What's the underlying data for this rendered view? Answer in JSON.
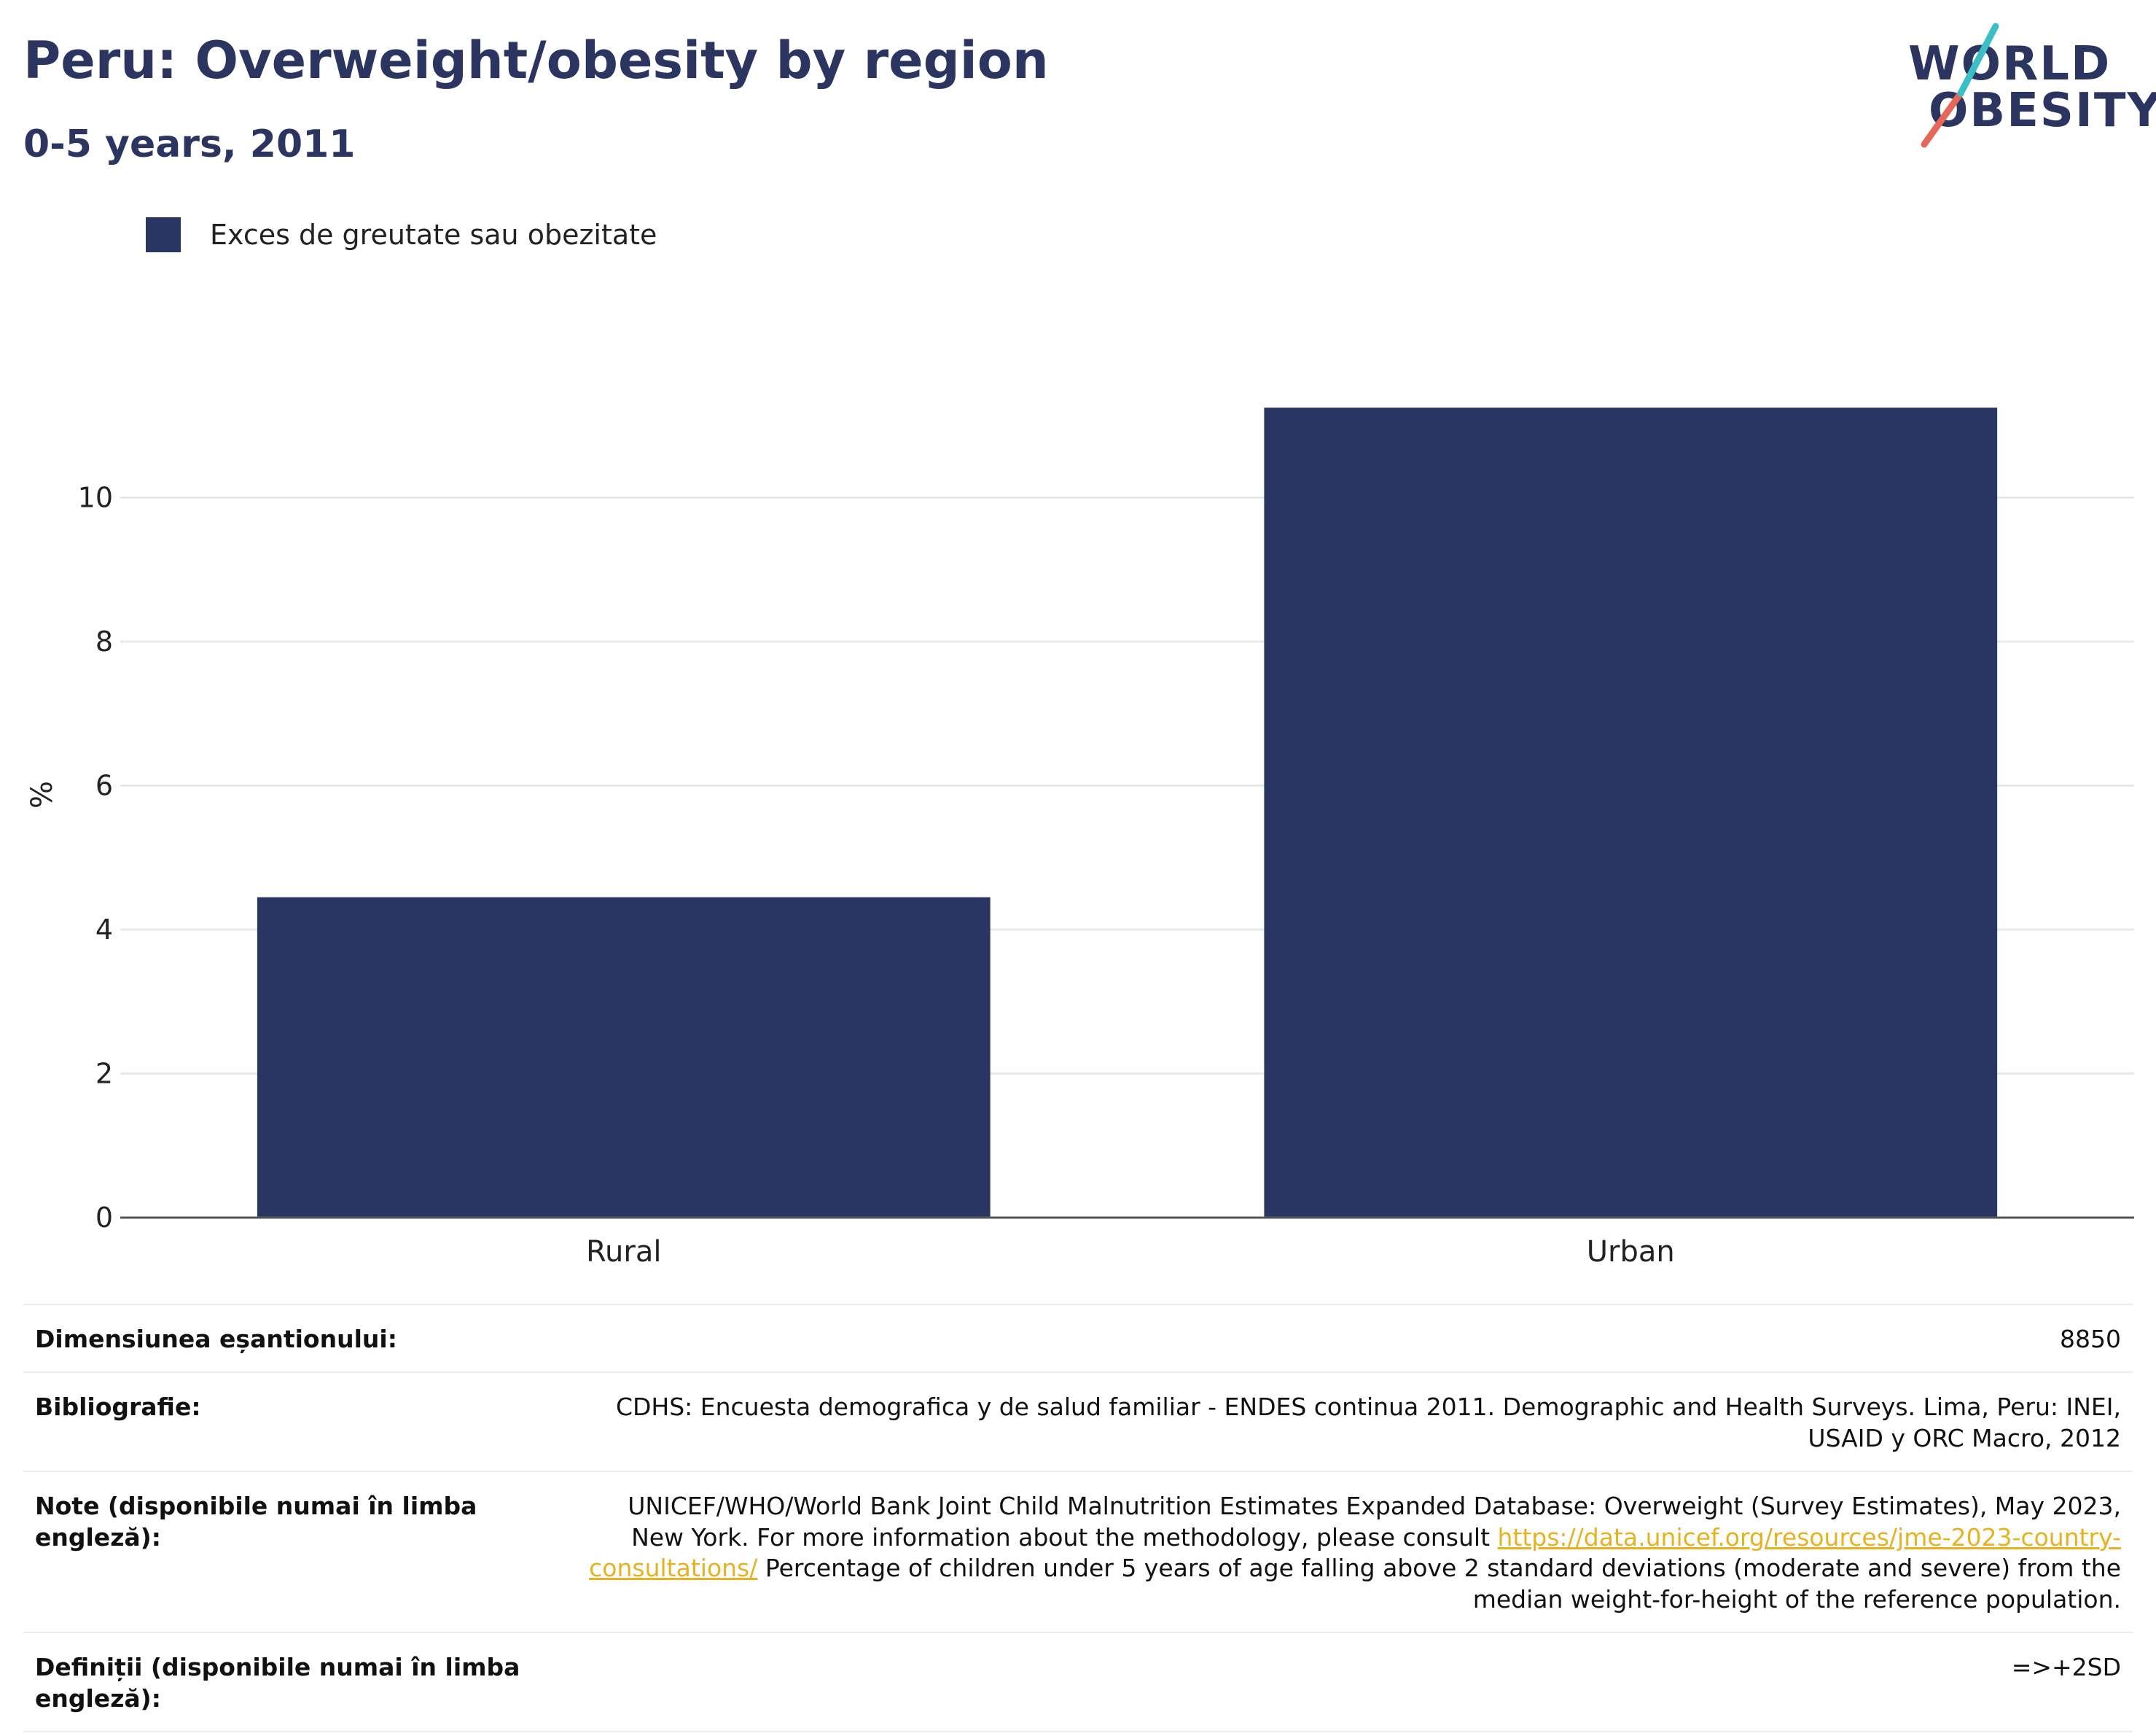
{
  "header": {
    "title": "Peru: Overweight/obesity by region",
    "subtitle": "0-5 years, 2011"
  },
  "logo": {
    "line1": "WORLD",
    "line2": "OBESITY",
    "accent_teal": "#3bbfc4",
    "accent_red": "#e5675a"
  },
  "legend": {
    "label": "Exces de greutate sau obezitate",
    "color": "#2a3662"
  },
  "chart_data": {
    "type": "bar",
    "categories": [
      "Rural",
      "Urban"
    ],
    "series": [
      {
        "name": "Exces de greutate sau obezitate",
        "values": [
          4.45,
          11.25
        ],
        "color": "#2a3662"
      }
    ],
    "title": "Peru: Overweight/obesity by region",
    "subtitle": "0-5 years, 2011",
    "xlabel": "",
    "ylabel": "%",
    "ylim": [
      0,
      12
    ],
    "yticks": [
      0,
      2,
      4,
      6,
      8,
      10
    ],
    "grid": true,
    "legend_position": "top-left"
  },
  "meta": {
    "rows": [
      {
        "label": "Dimensiunea eșantionului:",
        "value": "8850"
      },
      {
        "label": "Bibliografie:",
        "value": "CDHS: Encuesta demografica y de salud familiar - ENDES continua 2011. Demographic and Health Surveys. Lima, Peru: INEI, USAID y ORC Macro, 2012"
      },
      {
        "label": "Note (disponibile numai în limba engleză):",
        "value_pre": "UNICEF/WHO/World Bank Joint Child Malnutrition Estimates Expanded Database: Overweight (Survey Estimates), May 2023, New York. For more information about the methodology, please consult ",
        "link": "https://data.unicef.org/resources/jme-2023-country-consultations/",
        "value_post": " Percentage of children under 5 years of age falling above 2 standard deviations (moderate and severe) from the median weight-for-height of the reference population."
      },
      {
        "label": "Definiții (disponibile numai în limba engleză):",
        "value": "=>+2SD"
      }
    ]
  }
}
